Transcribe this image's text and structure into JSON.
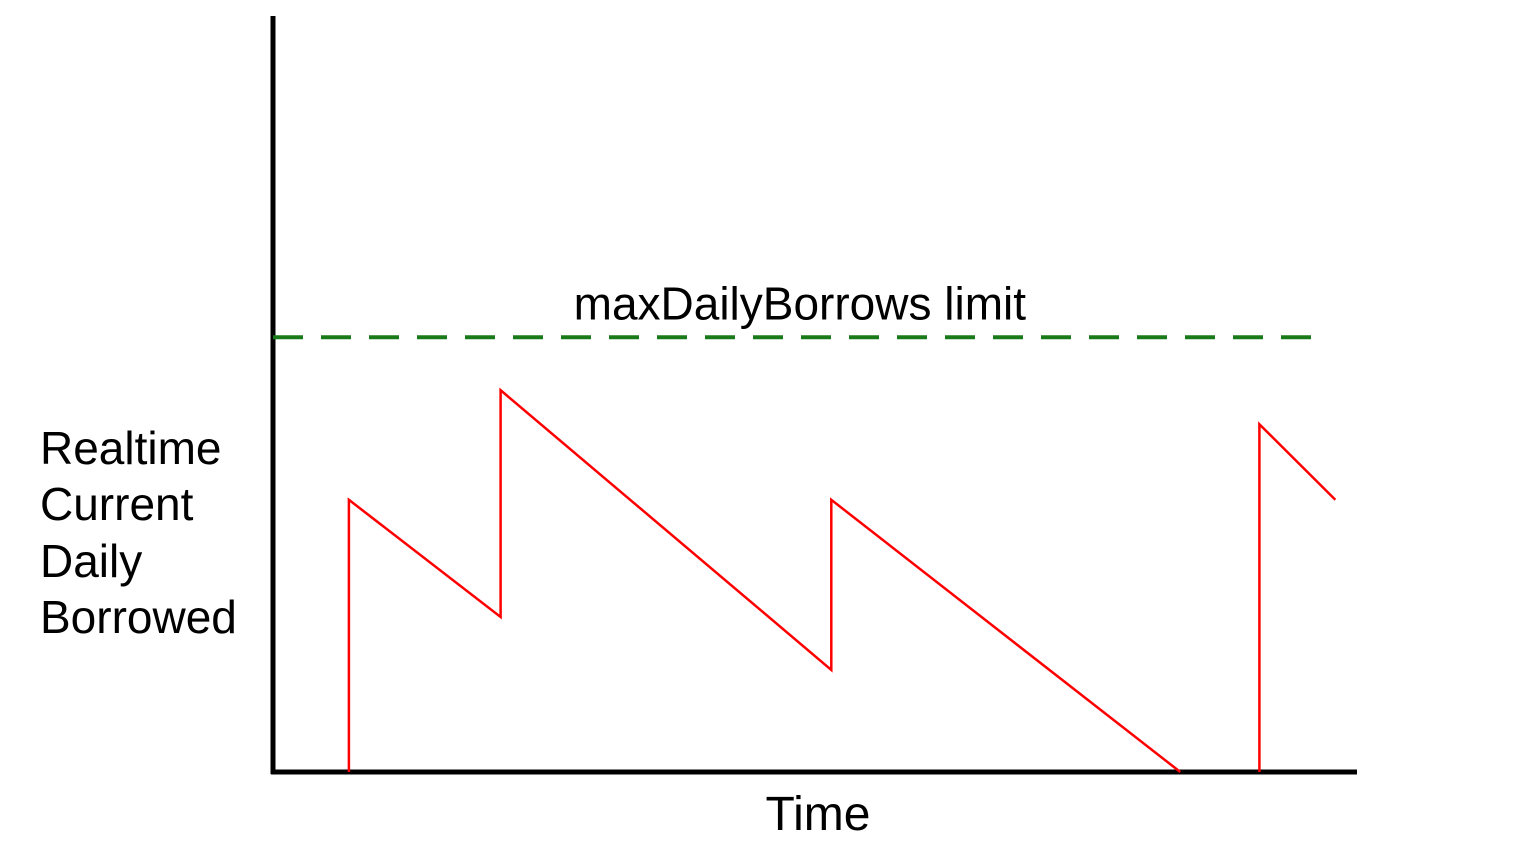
{
  "chart_data": {
    "type": "line",
    "xlabel": "Time",
    "ylabel_lines": [
      "Realtime",
      "Current",
      "Daily",
      "Borrowed"
    ],
    "xlim": [
      0,
      100
    ],
    "ylim": [
      0,
      100
    ],
    "grid": false,
    "series": [
      {
        "color": "#ff0000",
        "segments": [
          {
            "x": [
              7,
              7,
              21,
              21,
              51.5,
              51.5,
              83.7
            ],
            "y": [
              0,
              36,
              20.5,
              50.5,
              13.5,
              36,
              0
            ]
          },
          {
            "x": [
              91,
              91,
              98
            ],
            "y": [
              0,
              46,
              36
            ]
          }
        ]
      }
    ],
    "reference_lines": [
      {
        "label": "maxDailyBorrows limit",
        "y": 57.5,
        "x_range": [
          0,
          97.2
        ],
        "style": "dashed",
        "color": "#1a7a1a"
      }
    ]
  }
}
